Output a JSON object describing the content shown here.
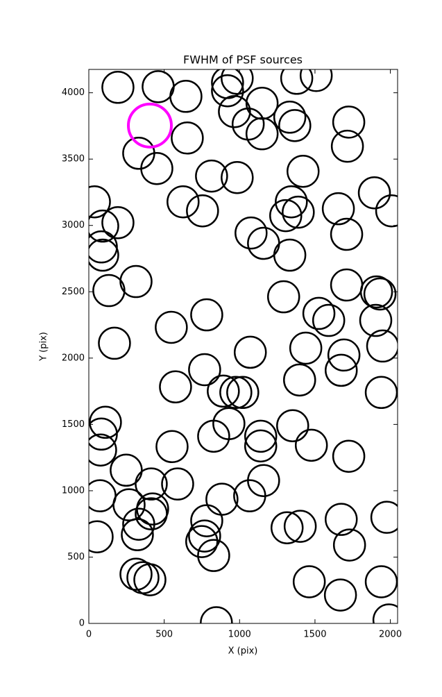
{
  "chart_data": {
    "type": "scatter",
    "title": "FWHM of PSF sources",
    "x_label": "X (pix)",
    "y_label": "Y (pix)",
    "xlim": [
      0,
      2048
    ],
    "ylim": [
      0,
      4176
    ],
    "xticks": [
      0,
      500,
      1000,
      1500,
      2000
    ],
    "yticks": [
      0,
      500,
      1000,
      1500,
      2000,
      2500,
      3000,
      3500,
      4000
    ],
    "series": [
      {
        "color": "#000000",
        "x": [
          193,
          460,
          644,
          920,
          984,
          920,
          1149,
          966,
          1057,
          1149,
          1333,
          1366,
          1379,
          1508,
          1724,
          1715,
          331,
          451,
          653,
          814,
          984,
          1421,
          625,
          754,
          37,
          92,
          193,
          83,
          92,
          1076,
          1159,
          1343,
          1306,
          1389,
          1655,
          1710,
          1894,
          2009,
          1333,
          133,
          313,
          1292,
          1710,
          1526,
          1591,
          1908,
          1931,
          1903,
          1949,
          782,
          547,
          170,
          1071,
          1439,
          1692,
          1674,
          1398,
          768,
          575,
          892,
          975,
          1021,
          1940,
          110,
          83,
          78,
          929,
          828,
          1140,
          1140,
          1352,
          1476,
          552,
          1724,
          248,
          414,
          589,
          1159,
          1067,
          883,
          74,
          267,
          423,
          414,
          331,
          322,
          782,
          768,
          749,
          828,
          1315,
          1402,
          1674,
          1729,
          1977,
          55,
          313,
          359,
          405,
          1462,
          1669,
          1940,
          846,
          1991
        ],
        "y": [
          4041,
          4046,
          3973,
          4077,
          4109,
          4015,
          3921,
          3858,
          3764,
          3691,
          3816,
          3753,
          4109,
          4130,
          3779,
          3597,
          3544,
          3429,
          3659,
          3372,
          3361,
          3408,
          3178,
          3110,
          3178,
          2995,
          3021,
          2838,
          2776,
          2943,
          2865,
          3178,
          3074,
          3100,
          3126,
          2933,
          3246,
          3110,
          2776,
          2509,
          2577,
          2462,
          2551,
          2337,
          2284,
          2499,
          2483,
          2284,
          2091,
          2326,
          2232,
          2112,
          2044,
          2075,
          2023,
          1908,
          1835,
          1913,
          1783,
          1751,
          1741,
          1741,
          1741,
          1516,
          1427,
          1307,
          1506,
          1411,
          1411,
          1338,
          1490,
          1343,
          1333,
          1260,
          1155,
          1051,
          1051,
          1077,
          962,
          936,
          962,
          894,
          863,
          826,
          748,
          669,
          774,
          659,
          617,
          512,
          721,
          732,
          784,
          591,
          800,
          653,
          371,
          345,
          329,
          314,
          214,
          314,
          5,
          26
        ]
      },
      {
        "color": "#ff00ff",
        "x": [
          405
        ],
        "y": [
          3753
        ]
      }
    ]
  }
}
